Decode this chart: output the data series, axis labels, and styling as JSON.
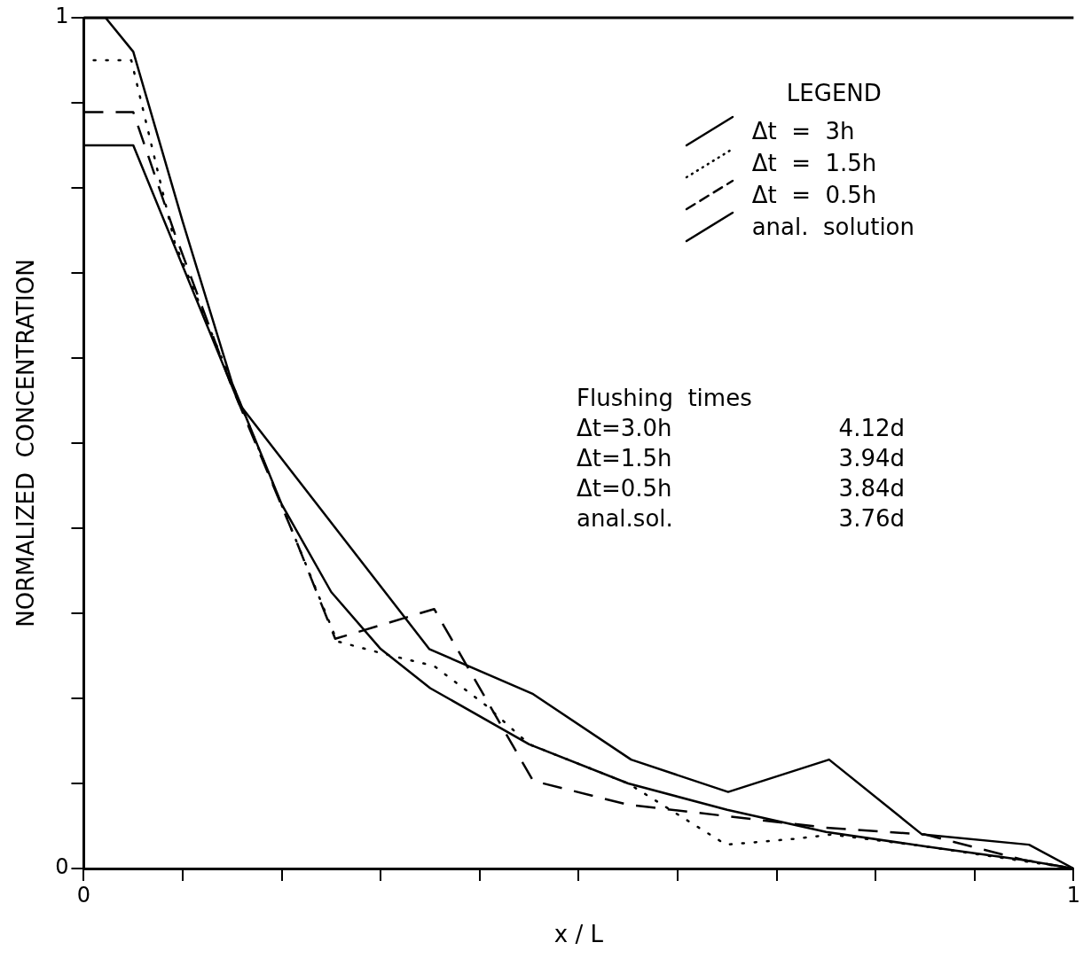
{
  "chart_data": {
    "type": "line",
    "xlabel": "x / L",
    "ylabel": "NORMALIZED  CONCENTRATION",
    "legend_title": "LEGEND",
    "legend": "top right",
    "grid": false,
    "marker": "none",
    "xlim": [
      0,
      1
    ],
    "ylim": [
      0,
      1
    ],
    "xticks": [
      0,
      {
        "value": 0.1,
        "label": null
      },
      {
        "value": 0.2,
        "label": null
      },
      {
        "value": 0.3,
        "label": null
      },
      {
        "value": 0.4,
        "label": null
      },
      {
        "value": 0.5,
        "label": null
      },
      {
        "value": 0.6,
        "label": null
      },
      {
        "value": 0.7,
        "label": null
      },
      {
        "value": 0.8,
        "label": null
      },
      {
        "value": 0.9,
        "label": null
      },
      1
    ],
    "yticks": [
      0,
      {
        "value": 0.1,
        "label": null
      },
      {
        "value": 0.2,
        "label": null
      },
      {
        "value": 0.3,
        "label": null
      },
      {
        "value": 0.4,
        "label": null
      },
      {
        "value": 0.5,
        "label": null
      },
      {
        "value": 0.6,
        "label": null
      },
      {
        "value": 0.7,
        "label": null
      },
      {
        "value": 0.8,
        "label": null
      },
      {
        "value": 0.9,
        "label": null
      },
      1
    ],
    "annotations": [
      "Flushing  times",
      "Δt=3.0h",
      "4.12d",
      "Δt=1.5h",
      "3.94d",
      "Δt=0.5h",
      "3.84d",
      "anal.sol.",
      "3.76d"
    ],
    "series": [
      {
        "name": "Δt  =  3h",
        "color": "#000000",
        "line_style": "solid",
        "x": [
          0,
          0.05,
          0.157,
          0.349,
          0.454,
          0.553,
          0.651,
          0.753,
          0.847,
          0.955,
          1
        ],
        "values": [
          0.85,
          0.85,
          0.546,
          0.258,
          0.205,
          0.128,
          0.09,
          0.128,
          0.04,
          0.028,
          0
        ]
      },
      {
        "name": "Δt  =  1.5h",
        "color": "#000000",
        "line_style": "dotted",
        "x": [
          0.01,
          0.048,
          0.092,
          0.153,
          0.214,
          0.256,
          0.301,
          0.354,
          0.406,
          0.45,
          0.55,
          0.649,
          0.72,
          0.755,
          0.85,
          0.948,
          1
        ],
        "values": [
          0.95,
          0.95,
          0.735,
          0.561,
          0.387,
          0.267,
          0.253,
          0.238,
          0.192,
          0.146,
          0.1,
          0.028,
          0.035,
          0.04,
          0.026,
          0.009,
          0
        ]
      },
      {
        "name": "Δt  =  0.5h",
        "color": "#000000",
        "line_style": "dashed",
        "x": [
          0,
          0.05,
          0.092,
          0.148,
          0.214,
          0.254,
          0.354,
          0.454,
          0.55,
          0.75,
          0.85,
          0.95,
          1
        ],
        "values": [
          0.889,
          0.889,
          0.746,
          0.571,
          0.387,
          0.27,
          0.305,
          0.103,
          0.075,
          0.048,
          0.04,
          0.01,
          0
        ]
      },
      {
        "name": "anal.  solution",
        "color": "#000000",
        "line_style": "solid",
        "x": [
          0,
          0.022,
          0.05,
          0.1,
          0.15,
          0.2,
          0.25,
          0.3,
          0.35,
          0.45,
          0.55,
          0.65,
          0.75,
          0.85,
          0.95,
          1
        ],
        "values": [
          1,
          1,
          0.96,
          0.76,
          0.57,
          0.428,
          0.325,
          0.258,
          0.212,
          0.146,
          0.1,
          0.069,
          0.043,
          0.026,
          0.01,
          0
        ]
      }
    ]
  }
}
